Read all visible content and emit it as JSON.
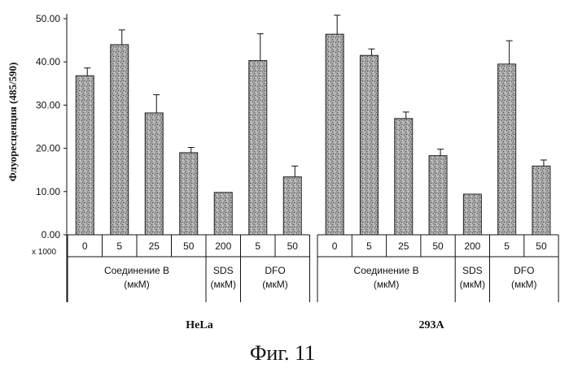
{
  "chart_data": {
    "type": "bar",
    "ylabel": "Флуоресценция (485/590)",
    "ylim": [
      0,
      50
    ],
    "yticks": [
      "0.00",
      "10.00",
      "20.00",
      "30.00",
      "40.00",
      "50.00"
    ],
    "multiplier_label": "x 1000",
    "caption": "Фиг. 11",
    "panels": [
      {
        "name": "HeLa",
        "categories": [
          "0",
          "5",
          "25",
          "50",
          "200",
          "5",
          "50"
        ],
        "values": [
          36.8,
          44.0,
          28.2,
          19.0,
          9.8,
          40.3,
          13.4
        ],
        "errors": [
          1.8,
          3.4,
          4.2,
          1.2,
          0,
          6.2,
          2.5
        ],
        "groups": [
          {
            "label_line1": "Соединение B",
            "label_line2": "(мкМ)",
            "span": [
              0,
              3
            ]
          },
          {
            "label_line1": "SDS",
            "label_line2": "(мкМ)",
            "span": [
              4,
              4
            ]
          },
          {
            "label_line1": "DFO",
            "label_line2": "(мкМ)",
            "span": [
              5,
              6
            ]
          }
        ]
      },
      {
        "name": "293A",
        "categories": [
          "0",
          "5",
          "25",
          "50",
          "200",
          "5",
          "50"
        ],
        "values": [
          46.4,
          41.5,
          26.9,
          18.3,
          9.4,
          39.5,
          15.9
        ],
        "errors": [
          4.4,
          1.5,
          1.5,
          1.5,
          0,
          5.4,
          1.4
        ],
        "groups": [
          {
            "label_line1": "Соединение B",
            "label_line2": "(мкМ)",
            "span": [
              0,
              3
            ]
          },
          {
            "label_line1": "SDS",
            "label_line2": "(мкМ)",
            "span": [
              4,
              4
            ]
          },
          {
            "label_line1": "DFO",
            "label_line2": "(мкМ)",
            "span": [
              5,
              6
            ]
          }
        ]
      }
    ]
  }
}
